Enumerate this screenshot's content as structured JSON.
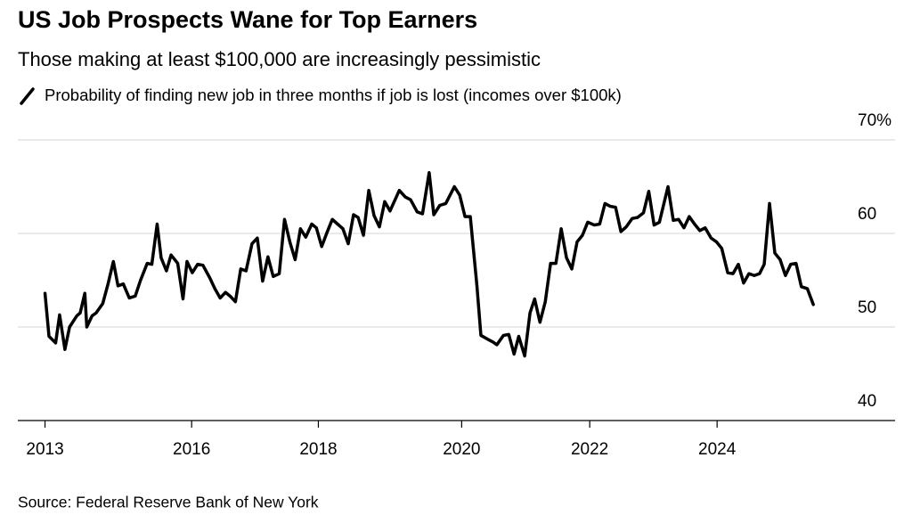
{
  "chart_data": {
    "type": "line",
    "title": "US Job Prospects Wane for Top Earners",
    "subtitle": "Those making at least $100,000 are increasingly pessimistic",
    "source": "Source: Federal Reserve Bank of New York",
    "x": [
      2013.79,
      2013.85,
      2013.95,
      2014.01,
      2014.09,
      2014.16,
      2014.27,
      2014.32,
      2014.36,
      2014.39,
      2014.42,
      2014.5,
      2014.56,
      2014.66,
      2014.74,
      2014.82,
      2014.89,
      2014.97,
      2015.06,
      2015.15,
      2015.23,
      2015.33,
      2015.4,
      2015.48,
      2015.54,
      2015.62,
      2015.69,
      2015.79,
      2015.87,
      2015.93,
      2016.01,
      2016.09,
      2016.17,
      2016.27,
      2016.35,
      2016.43,
      2016.51,
      2016.58,
      2016.66,
      2016.74,
      2016.82,
      2016.91,
      2016.99,
      2017.07,
      2017.15,
      2017.23,
      2017.32,
      2017.4,
      2017.48,
      2017.56,
      2017.64,
      2017.72,
      2017.81,
      2017.88,
      2017.96,
      2018.04,
      2018.12,
      2018.2,
      2018.28,
      2018.36,
      2018.44,
      2018.51,
      2018.59,
      2018.67,
      2018.75,
      2018.83,
      2018.91,
      2018.99,
      2019.13,
      2019.22,
      2019.3,
      2019.4,
      2019.48,
      2019.58,
      2019.65,
      2019.74,
      2019.83,
      2019.96,
      2020.04,
      2020.12,
      2020.2,
      2020.3,
      2020.36,
      2020.46,
      2020.54,
      2020.6,
      2020.7,
      2020.78,
      2020.86,
      2020.93,
      2021.02,
      2021.1,
      2021.17,
      2021.25,
      2021.33,
      2021.41,
      2021.49,
      2021.57,
      2021.65,
      2021.73,
      2021.81,
      2021.89,
      2021.97,
      2022.07,
      2022.15,
      2022.23,
      2022.31,
      2022.39,
      2022.47,
      2022.55,
      2022.64,
      2022.72,
      2022.81,
      2022.89,
      2022.97,
      2023.05,
      2023.18,
      2023.26,
      2023.34,
      2023.42,
      2023.5,
      2023.58,
      2023.66,
      2023.74,
      2023.83,
      2023.91,
      2023.99,
      2024.08,
      2024.16,
      2024.24,
      2024.32,
      2024.4,
      2024.48,
      2024.56,
      2024.63,
      2024.71,
      2024.79,
      2024.87,
      2024.95,
      2025.03,
      2025.11,
      2025.19,
      2025.28,
      2025.37
    ],
    "series": [
      {
        "name": "Probability of finding new job in three months if job is lost (incomes over $100k)",
        "color": "#000000",
        "values": [
          53.6,
          49.0,
          48.3,
          51.3,
          47.6,
          50.0,
          51.2,
          51.5,
          52.7,
          53.6,
          50.0,
          51.2,
          51.5,
          52.5,
          54.6,
          57.0,
          54.4,
          54.6,
          53.1,
          53.3,
          55.0,
          56.8,
          56.7,
          61.0,
          57.4,
          56.0,
          57.7,
          56.8,
          53.0,
          57.0,
          55.8,
          56.7,
          56.6,
          55.3,
          54.1,
          53.1,
          53.7,
          53.3,
          52.7,
          56.2,
          56.0,
          58.9,
          59.5,
          54.9,
          57.5,
          55.4,
          55.7,
          61.5,
          59.1,
          57.2,
          60.5,
          59.6,
          61.0,
          60.6,
          58.6,
          60.1,
          61.5,
          61.0,
          60.5,
          58.9,
          62.0,
          61.7,
          59.8,
          64.6,
          61.9,
          60.7,
          63.4,
          62.4,
          64.6,
          63.9,
          63.6,
          62.3,
          62.1,
          66.5,
          62.0,
          63.0,
          63.2,
          65.0,
          64.1,
          61.8,
          61.8,
          54.4,
          49.1,
          48.7,
          48.4,
          48.1,
          49.1,
          49.2,
          47.1,
          49.0,
          46.9,
          51.5,
          53.0,
          50.5,
          52.7,
          56.8,
          56.8,
          60.5,
          57.4,
          56.2,
          59.1,
          59.8,
          61.2,
          60.9,
          61.0,
          63.2,
          62.9,
          62.8,
          60.2,
          60.7,
          61.6,
          61.7,
          62.2,
          64.5,
          60.9,
          61.2,
          65.0,
          61.4,
          61.5,
          60.6,
          61.8,
          61.0,
          60.3,
          60.6,
          59.5,
          59.1,
          58.4,
          55.8,
          55.7,
          56.7,
          54.7,
          55.7,
          55.5,
          55.7,
          56.7,
          63.2,
          57.9,
          57.2,
          55.5,
          56.7,
          56.8,
          54.3,
          54.1,
          52.4
        ]
      }
    ],
    "xlim": [
      2013.38,
      2025.73
    ],
    "xticks": [
      {
        "value": 2013.79,
        "label": "2013"
      },
      {
        "value": 2016.0,
        "label": "2016"
      },
      {
        "value": 2017.91,
        "label": "2018"
      },
      {
        "value": 2020.07,
        "label": "2020"
      },
      {
        "value": 2022.0,
        "label": "2022"
      },
      {
        "value": 2023.92,
        "label": "2024"
      }
    ],
    "ylim": [
      40,
      70
    ],
    "yticks": [
      40,
      50,
      60,
      {
        "value": 70,
        "label": "70%"
      }
    ],
    "grid": true
  }
}
